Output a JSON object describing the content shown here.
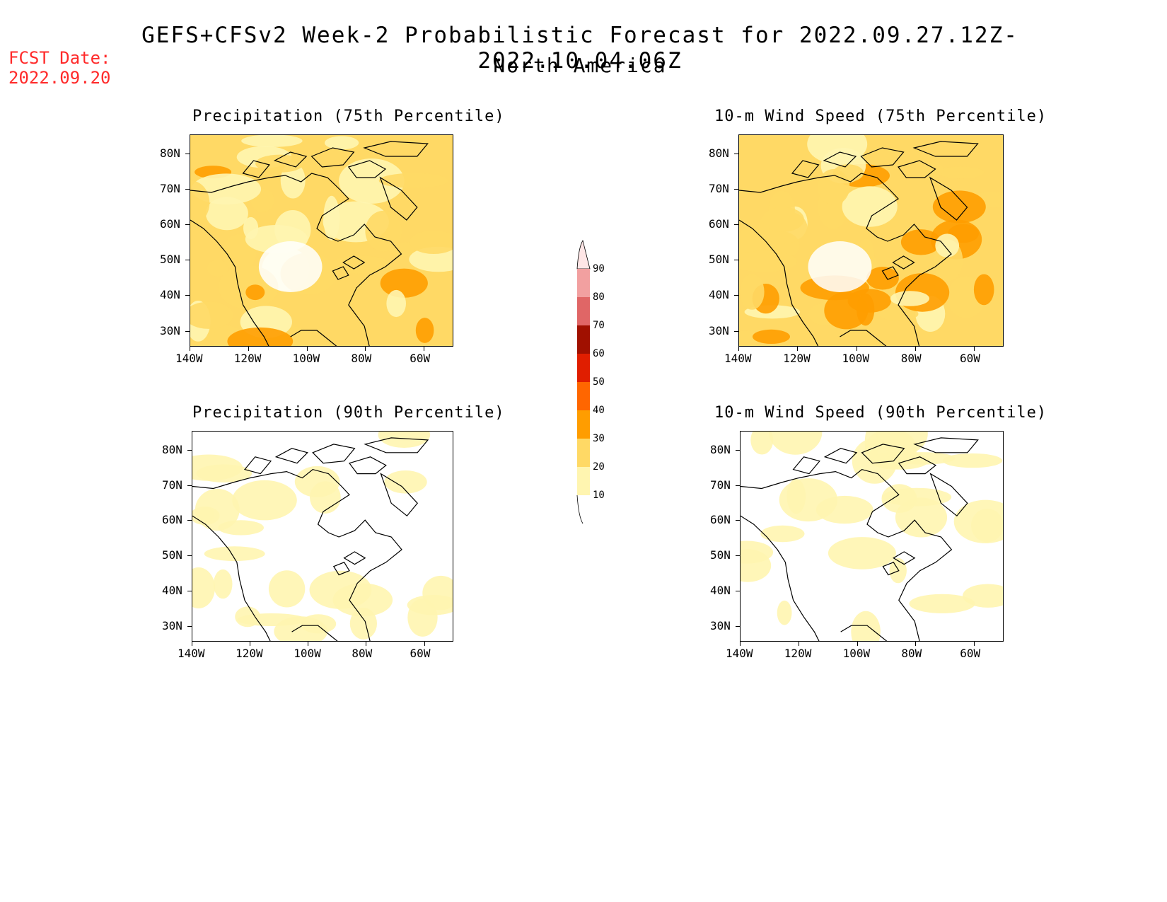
{
  "header": {
    "title": "GEFS+CFSv2 Week-2 Probabilistic Forecast for 2022.09.27.12Z-2022.10.04.06Z",
    "subtitle": "North America",
    "fcst_label": "FCST Date:",
    "fcst_date": "2022.09.20"
  },
  "axes": {
    "lat_labels": [
      "80N",
      "70N",
      "60N",
      "50N",
      "40N",
      "30N"
    ],
    "lon_labels": [
      "140W",
      "120W",
      "100W",
      "80W",
      "60W"
    ]
  },
  "panels": [
    {
      "id": "precip75",
      "title": "Precipitation (75th Percentile)",
      "level": 0.45
    },
    {
      "id": "wind75",
      "title": "10-m Wind Speed (75th Percentile)",
      "level": 0.6
    },
    {
      "id": "precip90",
      "title": "Precipitation (90th Percentile)",
      "level": 0.12
    },
    {
      "id": "wind90",
      "title": "10-m Wind Speed (90th Percentile)",
      "level": 0.15
    }
  ],
  "colorbar": {
    "labels": [
      "90",
      "80",
      "70",
      "60",
      "50",
      "40",
      "30",
      "20",
      "10"
    ],
    "colors": [
      "#ffe6e6",
      "#f2a0a0",
      "#e06666",
      "#a01000",
      "#e01e00",
      "#ff6600",
      "#ff9d00",
      "#ffd965",
      "#fff5b0"
    ]
  }
}
